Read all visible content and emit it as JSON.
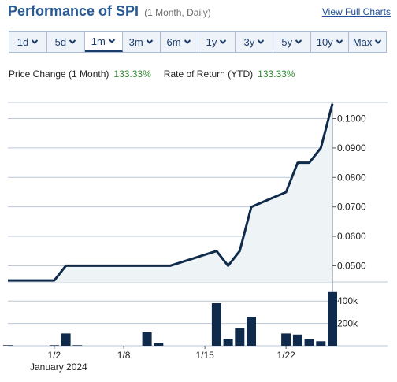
{
  "header": {
    "title": "Performance of SPI",
    "subtitle": "(1 Month, Daily)",
    "full_charts_link": "View Full Charts"
  },
  "tabs": [
    {
      "label": "1d",
      "active": false
    },
    {
      "label": "5d",
      "active": false
    },
    {
      "label": "1m",
      "active": true
    },
    {
      "label": "3m",
      "active": false
    },
    {
      "label": "6m",
      "active": false
    },
    {
      "label": "1y",
      "active": false
    },
    {
      "label": "3y",
      "active": false
    },
    {
      "label": "5y",
      "active": false
    },
    {
      "label": "10y",
      "active": false
    },
    {
      "label": "Max",
      "active": false
    }
  ],
  "stats": {
    "price_change_label": "Price Change (1 Month)",
    "price_change_value": "133.33%",
    "rate_of_return_label": "Rate of Return (YTD)",
    "rate_of_return_value": "133.33%"
  },
  "colors": {
    "line": "#0f2a4a",
    "area": "#eef3f6",
    "positive": "#2d8a2d",
    "title": "#2a5a94",
    "grid": "#b9c7d6"
  },
  "chart_data": [
    {
      "type": "area",
      "x": [
        "2023-12-29",
        "2024-01-02",
        "2024-01-03",
        "2024-01-04",
        "2024-01-05",
        "2024-01-08",
        "2024-01-09",
        "2024-01-10",
        "2024-01-11",
        "2024-01-12",
        "2024-01-16",
        "2024-01-17",
        "2024-01-18",
        "2024-01-19",
        "2024-01-22",
        "2024-01-23",
        "2024-01-24",
        "2024-01-25",
        "2024-01-26"
      ],
      "y": [
        0.045,
        0.045,
        0.05,
        0.05,
        0.05,
        0.05,
        0.05,
        0.05,
        0.05,
        0.05,
        0.055,
        0.05,
        0.055,
        0.07,
        0.075,
        0.085,
        0.085,
        0.09,
        0.105
      ],
      "ylim": [
        0.0445,
        0.1095
      ],
      "yticks": [
        "0.1000",
        "0.0900",
        "0.0800",
        "0.0700",
        "0.0600",
        "0.0500"
      ],
      "ytick_values": [
        0.1,
        0.09,
        0.08,
        0.07,
        0.06,
        0.05
      ],
      "axis_position": "right",
      "grid": true
    },
    {
      "type": "bar",
      "x": [
        "2023-12-29",
        "2024-01-02",
        "2024-01-03",
        "2024-01-04",
        "2024-01-05",
        "2024-01-08",
        "2024-01-09",
        "2024-01-10",
        "2024-01-11",
        "2024-01-12",
        "2024-01-16",
        "2024-01-17",
        "2024-01-18",
        "2024-01-19",
        "2024-01-22",
        "2024-01-23",
        "2024-01-24",
        "2024-01-25",
        "2024-01-26"
      ],
      "values": [
        5000,
        5000,
        110000,
        5000,
        0,
        0,
        0,
        120000,
        25000,
        0,
        380000,
        60000,
        160000,
        260000,
        110000,
        100000,
        60000,
        40000,
        480000
      ],
      "ylim": [
        0,
        500000
      ],
      "yticks": [
        "400k",
        "200k"
      ],
      "ytick_values": [
        400000,
        200000
      ],
      "xticks": [
        "1/2",
        "1/8",
        "1/15",
        "1/22"
      ],
      "xtick_dates": [
        "2024-01-02",
        "2024-01-08",
        "2024-01-15",
        "2024-01-22"
      ],
      "month_label": "January 2024"
    }
  ]
}
